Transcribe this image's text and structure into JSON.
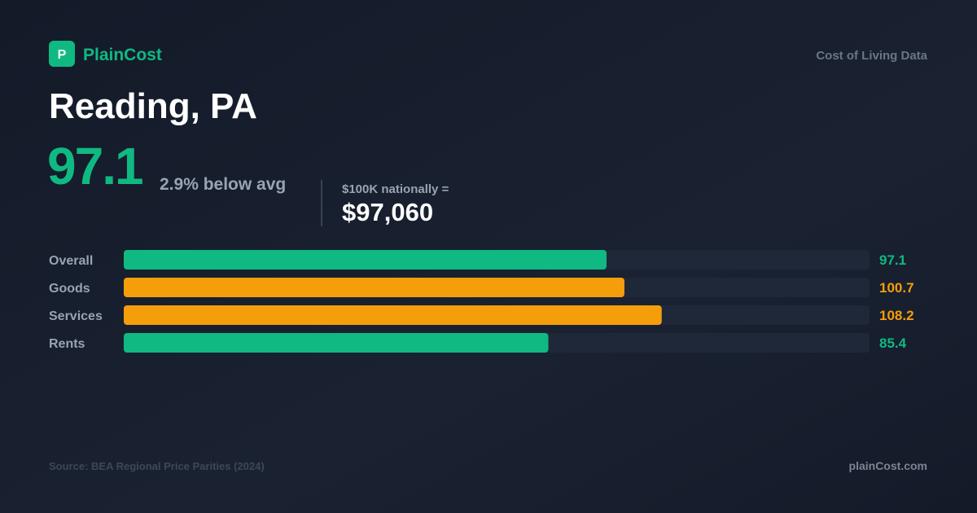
{
  "brand": {
    "logo_letter": "P",
    "name": "PlainCost",
    "tagline": "Cost of Living Data"
  },
  "city": "Reading, PA",
  "index": 97.1,
  "comparison": "2.9% below avg",
  "equivalent": {
    "label": "$100K nationally =",
    "value": "$97,060"
  },
  "footer": {
    "source": "Source: BEA Regional Price Parities (2024)",
    "site": "plainCost.com"
  },
  "chart_data": {
    "type": "bar",
    "orientation": "horizontal",
    "categories": [
      "Overall",
      "Goods",
      "Services",
      "Rents"
    ],
    "values": [
      97.1,
      100.7,
      108.2,
      85.4
    ],
    "colors": [
      "#10b981",
      "#f59e0b",
      "#f59e0b",
      "#10b981"
    ],
    "xlim": [
      0,
      150
    ]
  }
}
